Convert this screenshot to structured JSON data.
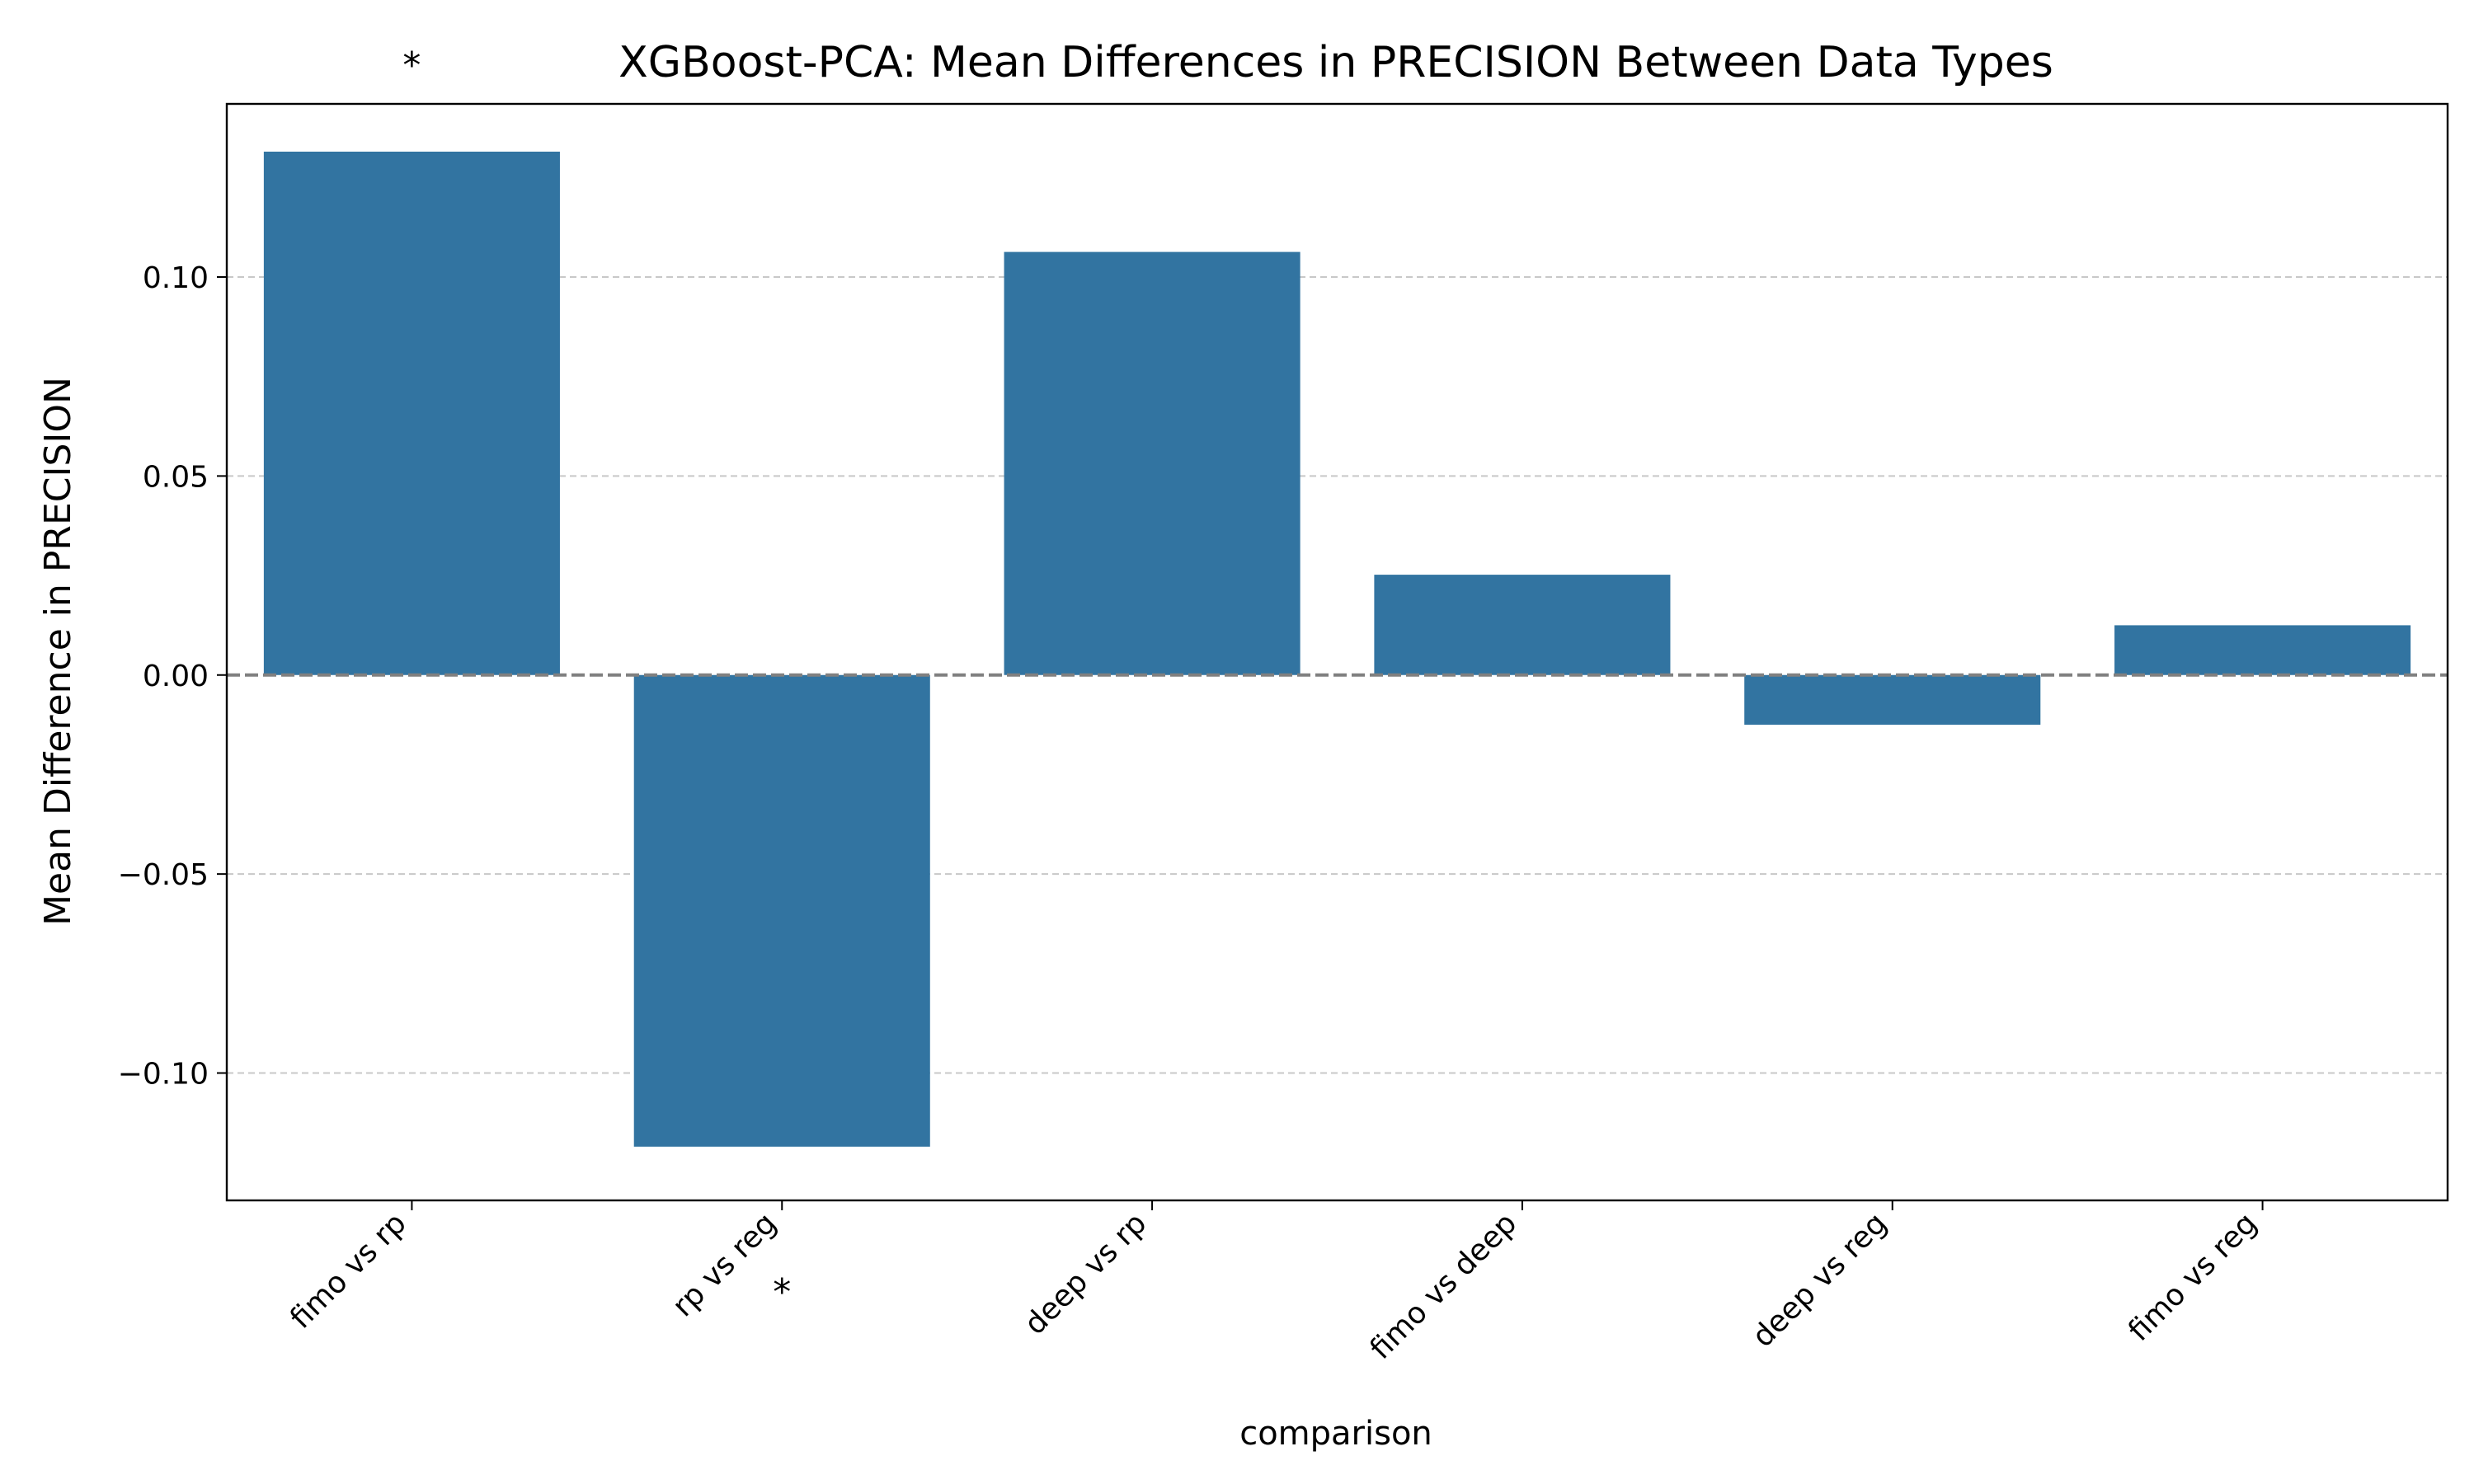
{
  "chart_data": {
    "type": "bar",
    "title": "XGBoost-PCA: Mean Differences in PRECISION Between Data Types",
    "xlabel": "comparison",
    "ylabel": "Mean Difference in PRECISION",
    "categories": [
      "fimo vs rp",
      "rp vs reg",
      "deep vs rp",
      "fimo vs deep",
      "deep vs reg",
      "fimo vs reg"
    ],
    "values": [
      0.1315,
      -0.1185,
      0.1063,
      0.0252,
      -0.0125,
      0.0125
    ],
    "significant": [
      true,
      true,
      false,
      false,
      false,
      false
    ],
    "significance_marker": "*",
    "ylim": [
      -0.132,
      0.1435
    ],
    "yticks": [
      -0.1,
      -0.05,
      0.0,
      0.05,
      0.1
    ],
    "ytick_labels": [
      "−0.10",
      "−0.05",
      "0.00",
      "0.05",
      "0.10"
    ],
    "grid": "horizontal dashed",
    "zero_line": "dashed",
    "colors": {
      "bar": "#3274a1",
      "grid": "#c8c8c8",
      "zero_line": "#808080",
      "axis": "#000000"
    }
  }
}
